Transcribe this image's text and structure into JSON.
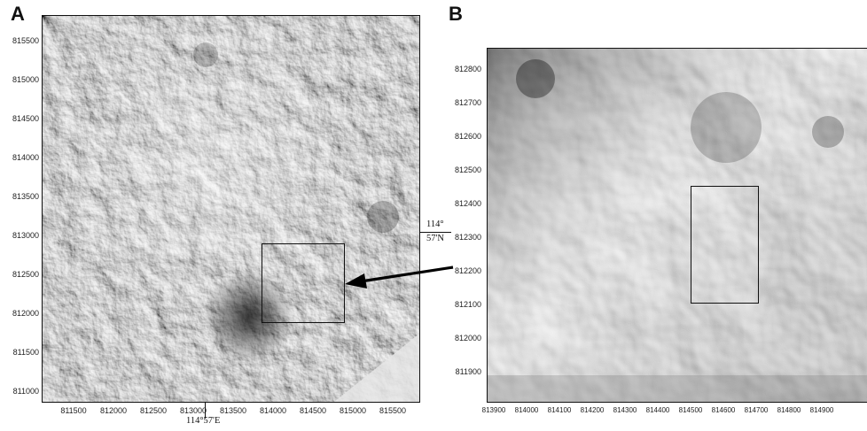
{
  "panels": [
    {
      "letter": "A",
      "y_ticks": [
        "815500",
        "815000",
        "814500",
        "814000",
        "813500",
        "813000",
        "812500",
        "812000",
        "811500",
        "811000"
      ],
      "x_ticks": [
        "811500",
        "812000",
        "812500",
        "813000",
        "813500",
        "814000",
        "814500",
        "815000",
        "815500"
      ],
      "lon_label": "114°57'E",
      "lat_label_deg": "114°",
      "lat_label_min": "57'N"
    },
    {
      "letter": "B",
      "y_ticks": [
        "812800",
        "812700",
        "812600",
        "812500",
        "812400",
        "812300",
        "812200",
        "812100",
        "812000",
        "811900"
      ],
      "x_ticks": [
        "813900",
        "814000",
        "814100",
        "814200",
        "814300",
        "814400",
        "814500",
        "814600",
        "814700",
        "814800",
        "814900"
      ]
    }
  ],
  "colors": {
    "frame": "#111111",
    "arrow": "#000000"
  },
  "icons": [
    "zoom-arrow-icon"
  ]
}
